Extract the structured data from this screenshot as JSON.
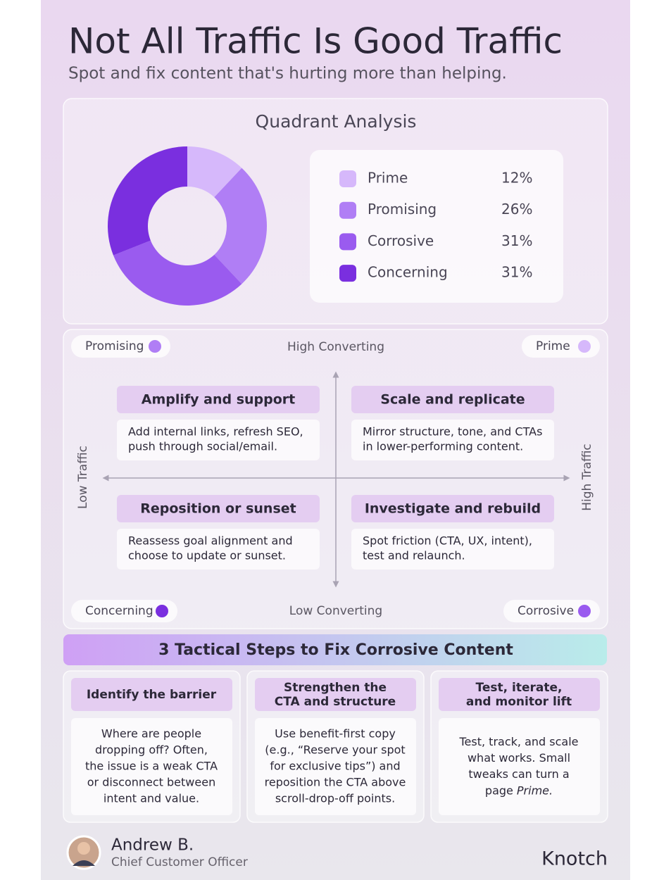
{
  "header": {
    "title": "Not All Traffic Is Good Traffic",
    "subtitle": "Spot and fix content that's hurting more than helping."
  },
  "chart_data": {
    "type": "pie",
    "title": "Quadrant Analysis",
    "categories": [
      "Prime",
      "Promising",
      "Corrosive",
      "Concerning"
    ],
    "values": [
      12,
      26,
      31,
      31
    ],
    "value_labels": [
      "12%",
      "26%",
      "31%",
      "31%"
    ],
    "colors": [
      "#d6b8fb",
      "#b07ef5",
      "#9a5bef",
      "#7a2fdf"
    ],
    "donut": true,
    "legend": "right"
  },
  "quadrant": {
    "top_axis": "High Converting",
    "bottom_axis": "Low Converting",
    "left_axis": "Low Traffic",
    "right_axis": "High Traffic",
    "corners": [
      {
        "label": "Promising",
        "color": "#b07ef5"
      },
      {
        "label": "Prime",
        "color": "#d6b8fb"
      },
      {
        "label": "Concerning",
        "color": "#7a2fdf"
      },
      {
        "label": "Corrosive",
        "color": "#9a5bef"
      }
    ],
    "cells": [
      {
        "title": "Amplify and support",
        "lines": [
          "Add internal links, refresh SEO,",
          "push through social/email."
        ]
      },
      {
        "title": "Scale and replicate",
        "lines": [
          "Mirror structure, tone, and CTAs",
          "in lower-performing content."
        ]
      },
      {
        "title": "Reposition or sunset",
        "lines": [
          "Reassess goal alignment and",
          "choose to update or sunset."
        ]
      },
      {
        "title": "Investigate and rebuild",
        "lines": [
          "Spot friction (CTA, UX, intent),",
          "test and relaunch."
        ]
      }
    ]
  },
  "steps": {
    "title": "3 Tactical Steps to Fix Corrosive Content",
    "items": [
      {
        "title": [
          "Identify the barrier"
        ],
        "lines": [
          "Where are people",
          "dropping off? Often,",
          "the issue is a weak CTA",
          "or disconnect between",
          "intent and value."
        ]
      },
      {
        "title": [
          "Strengthen the",
          "CTA and structure"
        ],
        "lines": [
          "Use benefit-first copy",
          "(e.g., “Reserve your spot",
          "for exclusive tips”) and",
          "reposition the CTA above",
          "scroll-drop-off points."
        ]
      },
      {
        "title": [
          "Test, iterate,",
          "and monitor lift"
        ],
        "lines": [
          "Test, track, and scale",
          "what works. Small",
          "tweaks can turn a"
        ],
        "last": {
          "text": "page",
          "emphasis": "Prime."
        }
      }
    ]
  },
  "footer": {
    "name": "Andrew B.",
    "role": "Chief Customer Officer",
    "brand": "Knotch"
  }
}
